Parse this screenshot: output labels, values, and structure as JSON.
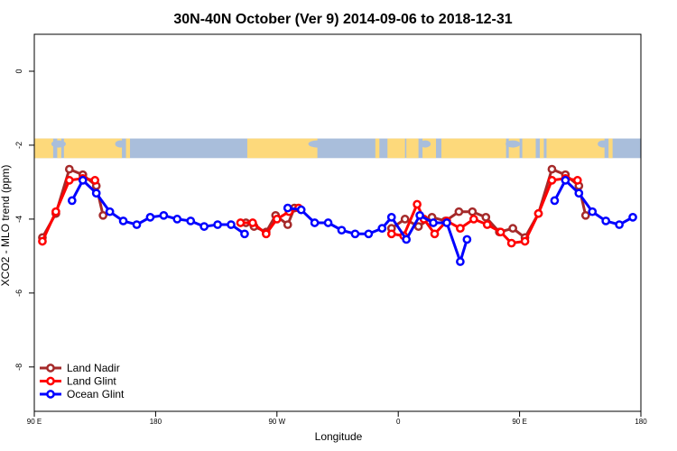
{
  "chart_data": {
    "type": "line",
    "title": "30N-40N October (Ver 9)   2014-09-06 to 2018-12-31",
    "xlabel": "Longitude",
    "ylabel": "XCO2 - MLO trend (ppm)",
    "xlim": [
      90,
      540
    ],
    "ylim": [
      -9.2,
      1.0
    ],
    "x_ticks": [
      {
        "value": 90,
        "label": "90 E"
      },
      {
        "value": 180,
        "label": "180"
      },
      {
        "value": 270,
        "label": "90 W"
      },
      {
        "value": 360,
        "label": "0"
      },
      {
        "value": 450,
        "label": "90 E"
      },
      {
        "value": 540,
        "label": "180"
      }
    ],
    "y_ticks": [
      {
        "value": 0,
        "label": "0"
      },
      {
        "value": -2,
        "label": "-2"
      },
      {
        "value": -4,
        "label": "-4"
      },
      {
        "value": -6,
        "label": "-6"
      },
      {
        "value": -8,
        "label": "-8"
      }
    ],
    "grid": false,
    "legend_position": "bottom-left",
    "map_strip": {
      "y_top": -1.82,
      "y_bottom": -2.35,
      "ocean_color": "#a9bedb",
      "land_color": "#fdd97b"
    },
    "series": [
      {
        "name": "Land Nadir",
        "color": "#a52a2a",
        "segments": [
          [
            [
              96,
              -4.5
            ],
            [
              106,
              -3.85
            ],
            [
              116,
              -2.65
            ],
            [
              126,
              -2.8
            ],
            [
              136,
              -3.1
            ],
            [
              141,
              -3.9
            ]
          ],
          [
            [
              355,
              -4.25
            ],
            [
              365,
              -4.0
            ],
            [
              375,
              -4.2
            ],
            [
              385,
              -3.95
            ],
            [
              395,
              -4.05
            ],
            [
              405,
              -3.8
            ],
            [
              415,
              -3.8
            ],
            [
              425,
              -3.95
            ],
            [
              435,
              -4.35
            ],
            [
              445,
              -4.25
            ],
            [
              454,
              -4.5
            ],
            [
              464,
              -3.85
            ],
            [
              474,
              -2.65
            ],
            [
              484,
              -2.8
            ],
            [
              494,
              -3.1
            ],
            [
              499,
              -3.9
            ]
          ],
          [
            [
              247,
              -4.1
            ],
            [
              253,
              -4.2
            ],
            [
              262,
              -4.35
            ],
            [
              269,
              -3.9
            ],
            [
              278,
              -4.15
            ],
            [
              283,
              -3.7
            ]
          ]
        ]
      },
      {
        "name": "Land Glint",
        "color": "#ff0000",
        "segments": [
          [
            [
              96,
              -4.6
            ],
            [
              106,
              -3.8
            ],
            [
              116,
              -2.95
            ],
            [
              126,
              -2.9
            ],
            [
              135,
              -2.95
            ]
          ],
          [
            [
              243,
              -4.1
            ],
            [
              252,
              -4.1
            ],
            [
              262,
              -4.4
            ],
            [
              270,
              -4.0
            ],
            [
              279,
              -3.8
            ],
            [
              286,
              -3.7
            ]
          ],
          [
            [
              355,
              -4.4
            ],
            [
              364,
              -4.45
            ],
            [
              374,
              -3.6
            ],
            [
              379,
              -4.0
            ],
            [
              387,
              -4.4
            ],
            [
              396,
              -4.05
            ],
            [
              406,
              -4.25
            ],
            [
              416,
              -4.0
            ],
            [
              426,
              -4.15
            ],
            [
              436,
              -4.35
            ],
            [
              444,
              -4.65
            ],
            [
              454,
              -4.6
            ],
            [
              464,
              -3.85
            ],
            [
              474,
              -2.95
            ],
            [
              484,
              -2.9
            ],
            [
              493,
              -2.95
            ]
          ]
        ]
      },
      {
        "name": "Ocean Glint",
        "color": "#0000ff",
        "segments": [
          [
            [
              118,
              -3.5
            ],
            [
              126,
              -2.95
            ],
            [
              136,
              -3.3
            ],
            [
              146,
              -3.8
            ],
            [
              156,
              -4.05
            ],
            [
              166,
              -4.15
            ],
            [
              176,
              -3.95
            ],
            [
              186,
              -3.9
            ],
            [
              196,
              -4.0
            ],
            [
              206,
              -4.05
            ],
            [
              216,
              -4.2
            ],
            [
              226,
              -4.15
            ],
            [
              236,
              -4.15
            ],
            [
              246,
              -4.4
            ]
          ],
          [
            [
              278,
              -3.7
            ],
            [
              288,
              -3.75
            ],
            [
              298,
              -4.1
            ],
            [
              308,
              -4.1
            ],
            [
              318,
              -4.3
            ],
            [
              328,
              -4.4
            ],
            [
              338,
              -4.4
            ],
            [
              348,
              -4.25
            ],
            [
              355,
              -3.95
            ],
            [
              366,
              -4.55
            ],
            [
              376,
              -3.9
            ],
            [
              386,
              -4.1
            ],
            [
              396,
              -4.1
            ],
            [
              406,
              -5.15
            ],
            [
              411,
              -4.55
            ]
          ],
          [
            [
              476,
              -3.5
            ],
            [
              484,
              -2.95
            ],
            [
              494,
              -3.3
            ],
            [
              504,
              -3.8
            ],
            [
              514,
              -4.05
            ],
            [
              524,
              -4.15
            ],
            [
              534,
              -3.95
            ]
          ]
        ]
      }
    ]
  }
}
